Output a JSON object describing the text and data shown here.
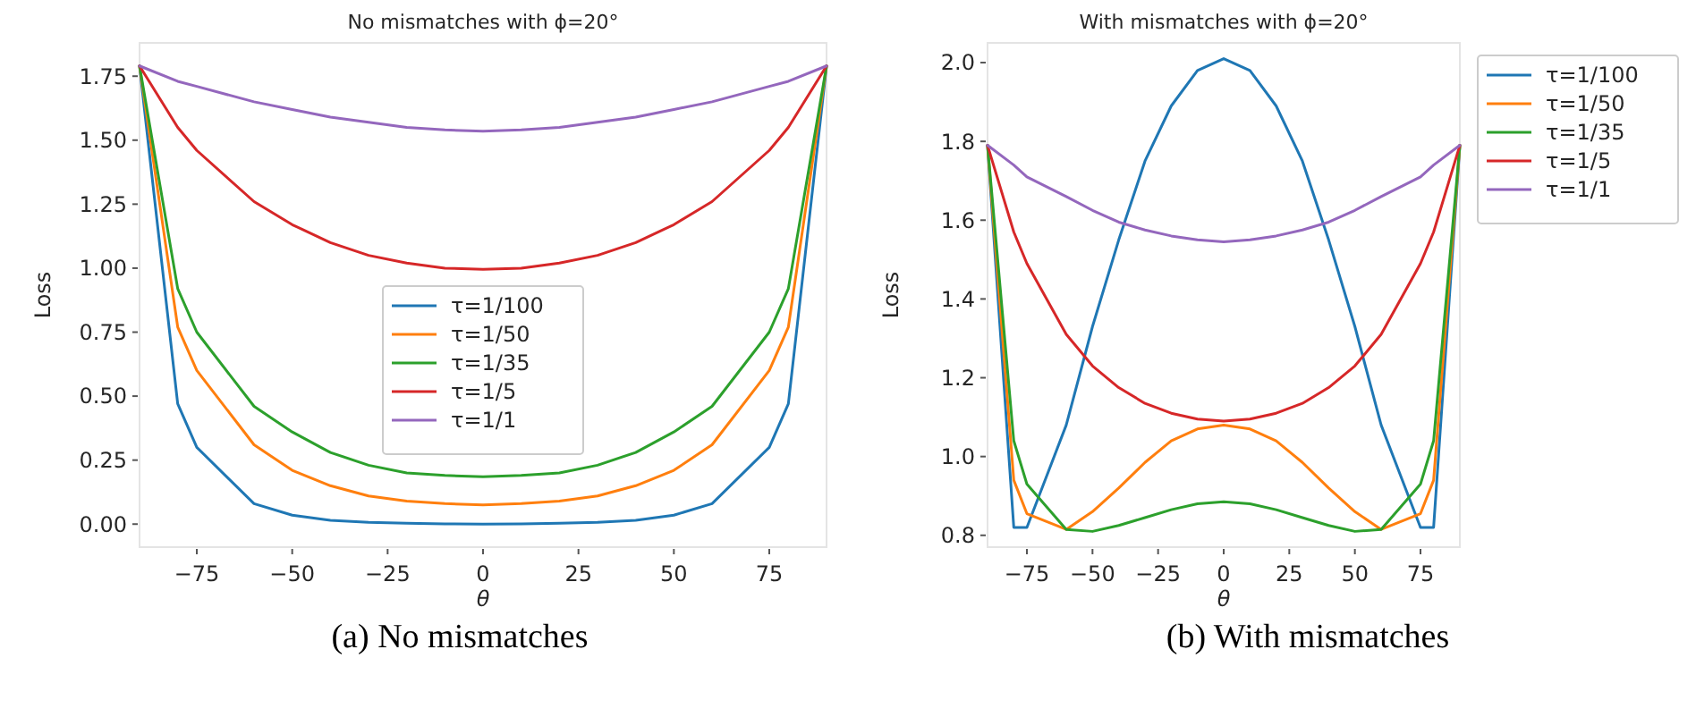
{
  "chart_data": [
    {
      "type": "line",
      "title": "No mismatches with ϕ=20°",
      "xlabel": "θ",
      "ylabel": "Loss",
      "annotations": [
        "(a) No mismatches"
      ],
      "legend": "center",
      "grid": false,
      "x": [
        -90,
        -80,
        -75,
        -60,
        -50,
        -40,
        -30,
        -20,
        -10,
        0,
        10,
        20,
        30,
        40,
        50,
        60,
        75,
        80,
        90
      ],
      "xlim": [
        -90,
        90
      ],
      "xticks": [
        {
          "value": -75,
          "label": "−75"
        },
        {
          "value": -50,
          "label": "−50"
        },
        {
          "value": -25,
          "label": "−25"
        },
        0,
        25,
        50,
        75
      ],
      "ylim": [
        -0.09,
        1.88
      ],
      "yticks": [
        {
          "value": 0,
          "label": "0.00"
        },
        0.25,
        {
          "value": 0.5,
          "label": "0.50"
        },
        0.75,
        {
          "value": 1,
          "label": "1.00"
        },
        1.25,
        {
          "value": 1.5,
          "label": "1.50"
        },
        1.75
      ],
      "series": [
        {
          "name": "τ=1/100",
          "color": "#1f77b4",
          "values": [
            1.79,
            0.47,
            0.3,
            0.08,
            0.035,
            0.015,
            0.007,
            0.003,
            0.001,
            0,
            0.001,
            0.003,
            0.007,
            0.015,
            0.035,
            0.08,
            0.3,
            0.47,
            1.79
          ]
        },
        {
          "name": "τ=1/50",
          "color": "#ff7f0e",
          "values": [
            1.79,
            0.77,
            0.6,
            0.31,
            0.21,
            0.15,
            0.11,
            0.09,
            0.08,
            0.075,
            0.08,
            0.09,
            0.11,
            0.15,
            0.21,
            0.31,
            0.6,
            0.77,
            1.79
          ]
        },
        {
          "name": "τ=1/35",
          "color": "#2ca02c",
          "values": [
            1.79,
            0.92,
            0.75,
            0.46,
            0.36,
            0.28,
            0.23,
            0.2,
            0.19,
            0.185,
            0.19,
            0.2,
            0.23,
            0.28,
            0.36,
            0.46,
            0.75,
            0.92,
            1.79
          ]
        },
        {
          "name": "τ=1/5",
          "color": "#d62728",
          "values": [
            1.79,
            1.55,
            1.46,
            1.26,
            1.17,
            1.1,
            1.05,
            1.02,
            1,
            0.995,
            1,
            1.02,
            1.05,
            1.1,
            1.17,
            1.26,
            1.46,
            1.55,
            1.79
          ]
        },
        {
          "name": "τ=1/1",
          "color": "#9467bd",
          "values": [
            1.79,
            1.73,
            1.71,
            1.65,
            1.62,
            1.59,
            1.57,
            1.55,
            1.54,
            1.535,
            1.54,
            1.55,
            1.57,
            1.59,
            1.62,
            1.65,
            1.71,
            1.73,
            1.79
          ]
        }
      ]
    },
    {
      "type": "line",
      "title": "With mismatches with ϕ=20°",
      "xlabel": "θ",
      "ylabel": "Loss",
      "annotations": [
        "(b) With mismatches"
      ],
      "legend": "right",
      "grid": false,
      "x": [
        -90,
        -80,
        -75,
        -60,
        -50,
        -40,
        -30,
        -20,
        -10,
        0,
        10,
        20,
        30,
        40,
        50,
        60,
        75,
        80,
        90
      ],
      "xlim": [
        -90,
        90
      ],
      "xticks": [
        {
          "value": -75,
          "label": "−75"
        },
        {
          "value": -50,
          "label": "−50"
        },
        {
          "value": -25,
          "label": "−25"
        },
        0,
        25,
        50,
        75
      ],
      "ylim": [
        0.77,
        2.05
      ],
      "yticks": [
        0.8,
        {
          "value": 1,
          "label": "1.0"
        },
        1.2,
        1.4,
        1.6,
        1.8,
        {
          "value": 2,
          "label": "2.0"
        }
      ],
      "series": [
        {
          "name": "τ=1/100",
          "color": "#1f77b4",
          "values": [
            1.79,
            0.82,
            0.82,
            1.08,
            1.33,
            1.55,
            1.75,
            1.89,
            1.98,
            2.01,
            1.98,
            1.89,
            1.75,
            1.55,
            1.33,
            1.08,
            0.82,
            0.82,
            1.79
          ]
        },
        {
          "name": "τ=1/50",
          "color": "#ff7f0e",
          "values": [
            1.79,
            0.94,
            0.855,
            0.815,
            0.86,
            0.92,
            0.985,
            1.04,
            1.07,
            1.08,
            1.07,
            1.04,
            0.985,
            0.92,
            0.86,
            0.815,
            0.855,
            0.94,
            1.79
          ]
        },
        {
          "name": "τ=1/35",
          "color": "#2ca02c",
          "values": [
            1.79,
            1.04,
            0.93,
            0.815,
            0.81,
            0.825,
            0.845,
            0.865,
            0.88,
            0.885,
            0.88,
            0.865,
            0.845,
            0.825,
            0.81,
            0.815,
            0.93,
            1.04,
            1.79
          ]
        },
        {
          "name": "τ=1/5",
          "color": "#d62728",
          "values": [
            1.79,
            1.57,
            1.49,
            1.31,
            1.23,
            1.175,
            1.135,
            1.11,
            1.095,
            1.09,
            1.095,
            1.11,
            1.135,
            1.175,
            1.23,
            1.31,
            1.49,
            1.57,
            1.79
          ]
        },
        {
          "name": "τ=1/1",
          "color": "#9467bd",
          "values": [
            1.79,
            1.74,
            1.71,
            1.66,
            1.625,
            1.595,
            1.575,
            1.56,
            1.55,
            1.545,
            1.55,
            1.56,
            1.575,
            1.595,
            1.625,
            1.66,
            1.71,
            1.74,
            1.79
          ]
        }
      ]
    }
  ]
}
